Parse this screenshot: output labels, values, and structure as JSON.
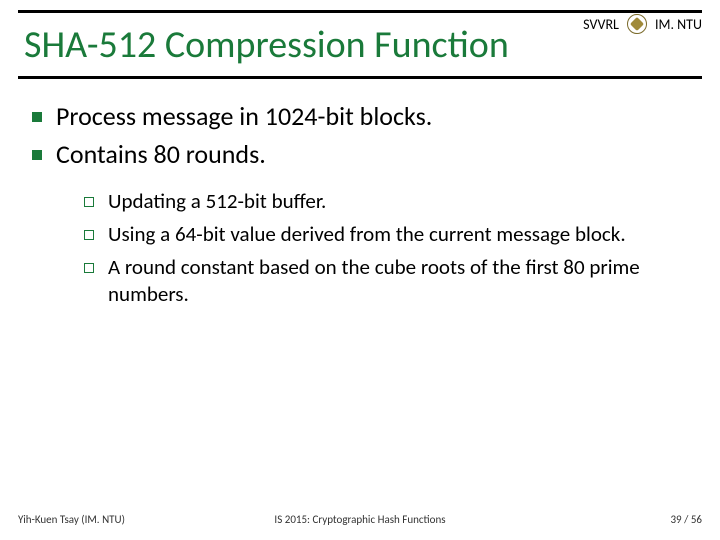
{
  "header": {
    "org_left": "SVVRL",
    "org_right": "IM. NTU"
  },
  "title": "SHA-512 Compression Function",
  "colors": {
    "accent": "#1a7a3a",
    "line": "#000000",
    "text": "#000000",
    "logo_border": "#7a6a2a",
    "logo_fill": "#a08a3a"
  },
  "typography": {
    "title_fontsize": 38,
    "bullet_fontsize": 26,
    "sub_fontsize": 21,
    "footer_fontsize": 11
  },
  "bullets": [
    "Process message in 1024-bit blocks.",
    "Contains 80 rounds."
  ],
  "sub_bullets": [
    "Updating a 512-bit buffer.",
    "Using a 64-bit value derived from the current message block.",
    "A round constant based on the cube roots of the first 80 prime numbers."
  ],
  "footer": {
    "left": "Yih-Kuen Tsay (IM. NTU)",
    "center": "IS 2015: Cryptographic Hash Functions",
    "right": "39 / 56"
  }
}
